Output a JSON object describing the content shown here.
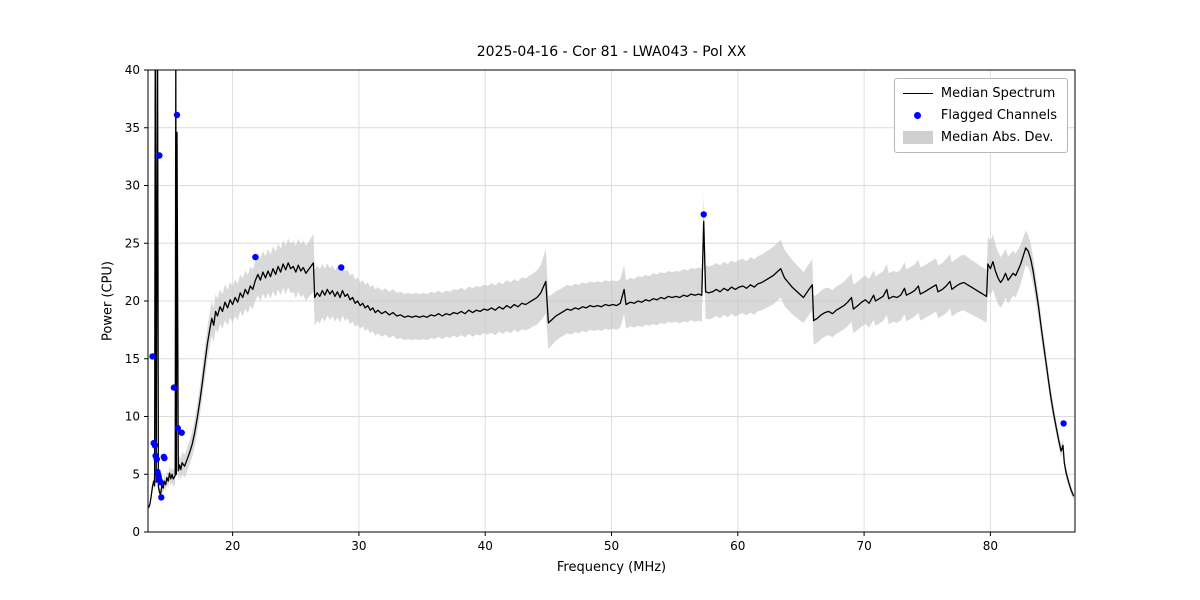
{
  "title": "2025-04-16 - Cor 81 - LWA043 - Pol XX",
  "chart_data": {
    "type": "line",
    "title": "2025-04-16 - Cor 81 - LWA043 - Pol XX",
    "xlabel": "Frequency (MHz)",
    "ylabel": "Power (CPU)",
    "xlim": [
      13.3,
      86.7
    ],
    "ylim": [
      0,
      40
    ],
    "xticks": [
      20,
      30,
      40,
      50,
      60,
      70,
      80
    ],
    "yticks": [
      0,
      5,
      10,
      15,
      20,
      25,
      30,
      35,
      40
    ],
    "grid": true,
    "colors": {
      "line": "#000000",
      "flagged": "#0000ff",
      "band": "#c4c4c4",
      "grid": "#dcdcdc",
      "spine": "#000000"
    },
    "legend": {
      "position": "upper right",
      "entries": [
        {
          "label": "Median Spectrum",
          "type": "line",
          "color": "#000000"
        },
        {
          "label": "Flagged Channels",
          "type": "point",
          "color": "#0000ff"
        },
        {
          "label": "Median Abs. Dev.",
          "type": "patch",
          "color": "#c8c8c8"
        }
      ]
    },
    "median_spectrum": [
      [
        13.35,
        2.1,
        0.2
      ],
      [
        13.45,
        2.4,
        0.25
      ],
      [
        13.55,
        3.1,
        0.3
      ],
      [
        13.65,
        3.9,
        0.4
      ],
      [
        13.75,
        4.4,
        0.5
      ],
      [
        13.82,
        4.0,
        0.5
      ],
      [
        13.88,
        45,
        0.5
      ],
      [
        13.95,
        4.3,
        0.5
      ],
      [
        14.05,
        45,
        0.5
      ],
      [
        14.12,
        3.9,
        0.5
      ],
      [
        14.2,
        3.5,
        0.45
      ],
      [
        14.3,
        3.2,
        0.4
      ],
      [
        14.4,
        4.1,
        0.5
      ],
      [
        14.5,
        3.8,
        0.5
      ],
      [
        14.6,
        4.4,
        0.55
      ],
      [
        14.7,
        4.1,
        0.55
      ],
      [
        14.8,
        4.7,
        0.6
      ],
      [
        14.9,
        4.4,
        0.6
      ],
      [
        15.0,
        5.1,
        0.65
      ],
      [
        15.1,
        4.6,
        0.65
      ],
      [
        15.2,
        5.0,
        0.7
      ],
      [
        15.3,
        4.6,
        0.7
      ],
      [
        15.45,
        4.9,
        0.7
      ],
      [
        15.5,
        41,
        0.7
      ],
      [
        15.55,
        5.0,
        0.75
      ],
      [
        15.6,
        34.6,
        0.8
      ],
      [
        15.7,
        5.3,
        0.8
      ],
      [
        15.8,
        5.8,
        0.85
      ],
      [
        15.9,
        5.4,
        0.9
      ],
      [
        16.0,
        6.0,
        0.95
      ],
      [
        16.2,
        5.7,
        1.0
      ],
      [
        16.4,
        6.3,
        1.0
      ],
      [
        16.6,
        6.9,
        1.05
      ],
      [
        16.8,
        7.6,
        1.1
      ],
      [
        17.0,
        8.6,
        1.15
      ],
      [
        17.2,
        9.9,
        1.2
      ],
      [
        17.4,
        11.3,
        1.25
      ],
      [
        17.6,
        12.9,
        1.3
      ],
      [
        17.8,
        14.6,
        1.35
      ],
      [
        18.0,
        16.3,
        1.4
      ],
      [
        18.2,
        17.6,
        1.45
      ],
      [
        18.35,
        18.5,
        1.5
      ],
      [
        18.5,
        17.9,
        1.5
      ],
      [
        18.65,
        19.1,
        1.5
      ],
      [
        18.8,
        18.7,
        1.5
      ],
      [
        19.0,
        19.5,
        1.5
      ],
      [
        19.2,
        19.1,
        1.5
      ],
      [
        19.4,
        19.9,
        1.55
      ],
      [
        19.6,
        19.4,
        1.55
      ],
      [
        19.8,
        20.1,
        1.55
      ],
      [
        20.0,
        19.7,
        1.55
      ],
      [
        20.2,
        20.3,
        1.6
      ],
      [
        20.4,
        19.9,
        1.6
      ],
      [
        20.6,
        20.7,
        1.6
      ],
      [
        20.8,
        20.3,
        1.65
      ],
      [
        21.0,
        21.0,
        1.65
      ],
      [
        21.2,
        20.6,
        1.65
      ],
      [
        21.4,
        21.3,
        1.7
      ],
      [
        21.6,
        21.0,
        1.7
      ],
      [
        21.8,
        21.8,
        1.75
      ],
      [
        22.0,
        22.3,
        1.8
      ],
      [
        22.2,
        21.8,
        1.8
      ],
      [
        22.4,
        22.5,
        1.85
      ],
      [
        22.6,
        22.0,
        1.85
      ],
      [
        22.8,
        22.6,
        1.9
      ],
      [
        23.0,
        22.1,
        1.9
      ],
      [
        23.2,
        22.8,
        1.95
      ],
      [
        23.4,
        22.3,
        1.95
      ],
      [
        23.6,
        23.0,
        2.0
      ],
      [
        23.8,
        22.5,
        2.0
      ],
      [
        24.0,
        23.2,
        2.05
      ],
      [
        24.2,
        22.7,
        2.1
      ],
      [
        24.4,
        23.3,
        2.1
      ],
      [
        24.6,
        22.8,
        2.15
      ],
      [
        24.8,
        23.0,
        2.2
      ],
      [
        25.0,
        22.5,
        2.25
      ],
      [
        25.2,
        23.1,
        2.3
      ],
      [
        25.4,
        22.6,
        2.3
      ],
      [
        25.6,
        22.9,
        2.35
      ],
      [
        25.8,
        22.4,
        2.4
      ],
      [
        26.0,
        22.7,
        2.4
      ],
      [
        26.2,
        23.0,
        2.45
      ],
      [
        26.4,
        23.3,
        2.5
      ],
      [
        26.5,
        20.3,
        2.45
      ],
      [
        26.7,
        20.7,
        2.4
      ],
      [
        26.9,
        20.4,
        2.35
      ],
      [
        27.1,
        20.9,
        2.3
      ],
      [
        27.3,
        20.5,
        2.3
      ],
      [
        27.5,
        21.0,
        2.25
      ],
      [
        27.7,
        20.6,
        2.25
      ],
      [
        27.9,
        20.9,
        2.2
      ],
      [
        28.1,
        20.4,
        2.2
      ],
      [
        28.3,
        20.8,
        2.2
      ],
      [
        28.5,
        20.3,
        2.2
      ],
      [
        28.7,
        20.9,
        2.15
      ],
      [
        28.9,
        20.4,
        2.15
      ],
      [
        29.1,
        20.6,
        2.1
      ],
      [
        29.3,
        20.1,
        2.1
      ],
      [
        29.5,
        20.3,
        2.1
      ],
      [
        29.7,
        19.8,
        2.05
      ],
      [
        29.9,
        20.0,
        2.05
      ],
      [
        30.1,
        19.6,
        2.0
      ],
      [
        30.3,
        19.8,
        2.0
      ],
      [
        30.5,
        19.4,
        2.0
      ],
      [
        30.7,
        19.6,
        2.0
      ],
      [
        30.9,
        19.2,
        2.0
      ],
      [
        31.1,
        19.4,
        2.0
      ],
      [
        31.3,
        19.0,
        2.0
      ],
      [
        31.5,
        19.2,
        2.0
      ],
      [
        31.8,
        18.9,
        2.0
      ],
      [
        32.1,
        19.1,
        2.0
      ],
      [
        32.4,
        18.8,
        2.0
      ],
      [
        32.7,
        19.0,
        2.0
      ],
      [
        33.0,
        18.7,
        2.0
      ],
      [
        33.3,
        18.8,
        2.0
      ],
      [
        33.6,
        18.6,
        2.0
      ],
      [
        33.9,
        18.7,
        2.0
      ],
      [
        34.2,
        18.6,
        2.0
      ],
      [
        34.5,
        18.7,
        2.0
      ],
      [
        34.8,
        18.6,
        2.0
      ],
      [
        35.1,
        18.7,
        2.0
      ],
      [
        35.4,
        18.6,
        2.0
      ],
      [
        35.7,
        18.8,
        2.0
      ],
      [
        36.0,
        18.7,
        2.0
      ],
      [
        36.3,
        18.9,
        2.0
      ],
      [
        36.6,
        18.7,
        2.0
      ],
      [
        36.9,
        18.9,
        2.0
      ],
      [
        37.2,
        18.8,
        2.0
      ],
      [
        37.5,
        19.0,
        2.0
      ],
      [
        37.8,
        18.9,
        2.05
      ],
      [
        38.1,
        19.1,
        2.05
      ],
      [
        38.4,
        18.9,
        2.05
      ],
      [
        38.7,
        19.2,
        2.05
      ],
      [
        39.0,
        19.0,
        2.1
      ],
      [
        39.3,
        19.2,
        2.1
      ],
      [
        39.6,
        19.1,
        2.1
      ],
      [
        39.9,
        19.3,
        2.1
      ],
      [
        40.2,
        19.2,
        2.1
      ],
      [
        40.5,
        19.4,
        2.15
      ],
      [
        40.8,
        19.2,
        2.15
      ],
      [
        41.1,
        19.5,
        2.15
      ],
      [
        41.4,
        19.3,
        2.15
      ],
      [
        41.7,
        19.6,
        2.2
      ],
      [
        42.0,
        19.4,
        2.2
      ],
      [
        42.3,
        19.7,
        2.2
      ],
      [
        42.6,
        19.5,
        2.2
      ],
      [
        42.9,
        19.8,
        2.25
      ],
      [
        43.2,
        19.7,
        2.25
      ],
      [
        43.5,
        19.9,
        2.3
      ],
      [
        43.8,
        20.1,
        2.3
      ],
      [
        44.1,
        20.3,
        2.35
      ],
      [
        44.4,
        20.7,
        2.4
      ],
      [
        44.8,
        21.7,
        2.8
      ],
      [
        45.0,
        18.1,
        2.3
      ],
      [
        45.3,
        18.4,
        2.2
      ],
      [
        45.6,
        18.7,
        2.15
      ],
      [
        45.9,
        18.9,
        2.1
      ],
      [
        46.2,
        19.1,
        2.1
      ],
      [
        46.5,
        19.3,
        2.1
      ],
      [
        46.8,
        19.2,
        2.1
      ],
      [
        47.1,
        19.4,
        2.1
      ],
      [
        47.4,
        19.3,
        2.1
      ],
      [
        47.7,
        19.5,
        2.1
      ],
      [
        48.0,
        19.4,
        2.1
      ],
      [
        48.3,
        19.6,
        2.1
      ],
      [
        48.6,
        19.5,
        2.1
      ],
      [
        48.9,
        19.6,
        2.1
      ],
      [
        49.2,
        19.5,
        2.1
      ],
      [
        49.5,
        19.7,
        2.1
      ],
      [
        49.8,
        19.6,
        2.1
      ],
      [
        50.1,
        19.7,
        2.1
      ],
      [
        50.4,
        19.6,
        2.1
      ],
      [
        50.7,
        19.8,
        2.1
      ],
      [
        51.0,
        21.0,
        2.1
      ],
      [
        51.15,
        19.7,
        2.1
      ],
      [
        51.5,
        19.9,
        2.1
      ],
      [
        51.8,
        19.8,
        2.1
      ],
      [
        52.1,
        20.0,
        2.15
      ],
      [
        52.4,
        19.9,
        2.15
      ],
      [
        52.7,
        20.1,
        2.15
      ],
      [
        53.0,
        20.0,
        2.15
      ],
      [
        53.3,
        20.2,
        2.2
      ],
      [
        53.6,
        20.1,
        2.2
      ],
      [
        53.9,
        20.3,
        2.2
      ],
      [
        54.2,
        20.2,
        2.2
      ],
      [
        54.5,
        20.4,
        2.2
      ],
      [
        54.8,
        20.3,
        2.2
      ],
      [
        55.1,
        20.4,
        2.2
      ],
      [
        55.4,
        20.3,
        2.25
      ],
      [
        55.7,
        20.5,
        2.25
      ],
      [
        56.0,
        20.4,
        2.25
      ],
      [
        56.3,
        20.6,
        2.25
      ],
      [
        56.6,
        20.5,
        2.3
      ],
      [
        56.9,
        20.6,
        2.3
      ],
      [
        57.15,
        20.5,
        2.3
      ],
      [
        57.3,
        26.9,
        2.3
      ],
      [
        57.45,
        20.8,
        2.3
      ],
      [
        57.7,
        20.7,
        2.3
      ],
      [
        58.0,
        20.8,
        2.3
      ],
      [
        58.3,
        21.0,
        2.3
      ],
      [
        58.6,
        20.8,
        2.3
      ],
      [
        58.9,
        21.1,
        2.3
      ],
      [
        59.2,
        20.9,
        2.3
      ],
      [
        59.5,
        21.2,
        2.3
      ],
      [
        59.8,
        21.0,
        2.35
      ],
      [
        60.1,
        21.2,
        2.35
      ],
      [
        60.4,
        21.3,
        2.35
      ],
      [
        60.7,
        21.1,
        2.35
      ],
      [
        61.0,
        21.4,
        2.4
      ],
      [
        61.3,
        21.2,
        2.4
      ],
      [
        61.6,
        21.5,
        2.4
      ],
      [
        61.9,
        21.6,
        2.4
      ],
      [
        62.2,
        21.8,
        2.45
      ],
      [
        62.5,
        22.0,
        2.45
      ],
      [
        62.8,
        22.2,
        2.5
      ],
      [
        63.1,
        22.5,
        2.5
      ],
      [
        63.4,
        22.8,
        2.5
      ],
      [
        63.7,
        22.0,
        2.45
      ],
      [
        64.0,
        21.6,
        2.4
      ],
      [
        64.3,
        21.2,
        2.35
      ],
      [
        64.6,
        20.9,
        2.3
      ],
      [
        64.9,
        20.6,
        2.25
      ],
      [
        65.2,
        20.3,
        2.2
      ],
      [
        65.5,
        20.8,
        2.2
      ],
      [
        65.9,
        21.4,
        2.2
      ],
      [
        66.0,
        18.3,
        2.1
      ],
      [
        66.3,
        18.5,
        2.1
      ],
      [
        66.6,
        18.8,
        2.1
      ],
      [
        66.9,
        19.0,
        2.1
      ],
      [
        67.2,
        19.1,
        2.05
      ],
      [
        67.5,
        18.9,
        2.05
      ],
      [
        67.8,
        19.2,
        2.05
      ],
      [
        68.1,
        19.4,
        2.05
      ],
      [
        68.4,
        19.6,
        2.05
      ],
      [
        68.7,
        19.9,
        2.1
      ],
      [
        69.0,
        20.3,
        2.1
      ],
      [
        69.15,
        19.3,
        2.1
      ],
      [
        69.5,
        19.6,
        2.1
      ],
      [
        69.8,
        19.9,
        2.1
      ],
      [
        70.1,
        20.1,
        2.1
      ],
      [
        70.4,
        19.8,
        2.1
      ],
      [
        70.75,
        20.5,
        2.15
      ],
      [
        70.9,
        20.0,
        2.15
      ],
      [
        71.2,
        20.2,
        2.15
      ],
      [
        71.5,
        20.4,
        2.15
      ],
      [
        71.8,
        21.0,
        2.2
      ],
      [
        71.95,
        20.2,
        2.2
      ],
      [
        72.3,
        20.4,
        2.2
      ],
      [
        72.6,
        20.3,
        2.2
      ],
      [
        72.9,
        20.5,
        2.2
      ],
      [
        73.2,
        21.1,
        2.25
      ],
      [
        73.35,
        20.5,
        2.25
      ],
      [
        73.7,
        20.7,
        2.25
      ],
      [
        74.0,
        20.9,
        2.25
      ],
      [
        74.3,
        21.3,
        2.3
      ],
      [
        74.45,
        20.6,
        2.3
      ],
      [
        74.8,
        20.8,
        2.3
      ],
      [
        75.1,
        21.0,
        2.3
      ],
      [
        75.4,
        21.2,
        2.3
      ],
      [
        75.7,
        21.4,
        2.3
      ],
      [
        75.85,
        20.8,
        2.3
      ],
      [
        76.2,
        21.0,
        2.3
      ],
      [
        76.5,
        21.3,
        2.35
      ],
      [
        76.8,
        21.7,
        2.35
      ],
      [
        76.95,
        21.0,
        2.35
      ],
      [
        77.3,
        21.3,
        2.35
      ],
      [
        77.6,
        21.5,
        2.4
      ],
      [
        77.9,
        21.6,
        2.4
      ],
      [
        78.2,
        21.4,
        2.4
      ],
      [
        78.5,
        21.2,
        2.35
      ],
      [
        78.8,
        21.0,
        2.35
      ],
      [
        79.1,
        20.8,
        2.3
      ],
      [
        79.4,
        20.6,
        2.3
      ],
      [
        79.7,
        20.4,
        2.3
      ],
      [
        79.8,
        23.2,
        2.4
      ],
      [
        80.0,
        22.8,
        2.4
      ],
      [
        80.2,
        23.4,
        2.35
      ],
      [
        80.4,
        22.6,
        2.3
      ],
      [
        80.6,
        22.0,
        2.25
      ],
      [
        80.8,
        21.6,
        2.2
      ],
      [
        81.0,
        21.9,
        2.15
      ],
      [
        81.2,
        22.4,
        2.1
      ],
      [
        81.4,
        21.8,
        2.05
      ],
      [
        81.6,
        22.1,
        2.0
      ],
      [
        81.8,
        22.4,
        1.95
      ],
      [
        82.0,
        22.2,
        1.9
      ],
      [
        82.2,
        22.7,
        1.8
      ],
      [
        82.4,
        23.2,
        1.7
      ],
      [
        82.6,
        23.9,
        1.6
      ],
      [
        82.8,
        24.6,
        1.5
      ],
      [
        83.0,
        24.3,
        1.4
      ],
      [
        83.2,
        23.6,
        1.3
      ],
      [
        83.4,
        22.5,
        1.2
      ],
      [
        83.6,
        21.1,
        1.1
      ],
      [
        83.8,
        19.6,
        1.0
      ],
      [
        84.0,
        17.9,
        0.95
      ],
      [
        84.2,
        16.3,
        0.9
      ],
      [
        84.4,
        14.7,
        0.85
      ],
      [
        84.6,
        13.1,
        0.8
      ],
      [
        84.8,
        11.6,
        0.75
      ],
      [
        85.0,
        10.3,
        0.7
      ],
      [
        85.2,
        9.1,
        0.65
      ],
      [
        85.4,
        8.0,
        0.6
      ],
      [
        85.6,
        7.0,
        0.55
      ],
      [
        85.75,
        7.5,
        0.5
      ],
      [
        85.85,
        6.0,
        0.5
      ],
      [
        86.0,
        5.1,
        0.45
      ],
      [
        86.2,
        4.3,
        0.4
      ],
      [
        86.4,
        3.6,
        0.35
      ],
      [
        86.6,
        3.1,
        0.3
      ]
    ],
    "flagged_channels": [
      [
        13.66,
        15.2
      ],
      [
        14.2,
        32.6
      ],
      [
        13.75,
        7.7
      ],
      [
        13.85,
        7.5
      ],
      [
        13.9,
        6.6
      ],
      [
        14.0,
        6.3
      ],
      [
        14.05,
        5.2
      ],
      [
        14.1,
        5.0
      ],
      [
        14.15,
        4.8
      ],
      [
        14.2,
        4.5
      ],
      [
        14.3,
        4.3
      ],
      [
        14.35,
        3.0
      ],
      [
        14.55,
        6.5
      ],
      [
        14.6,
        6.4
      ],
      [
        15.35,
        12.5
      ],
      [
        15.6,
        36.1
      ],
      [
        15.66,
        9.0
      ],
      [
        15.97,
        8.6
      ],
      [
        21.8,
        23.8
      ],
      [
        28.6,
        22.9
      ],
      [
        57.3,
        27.5
      ],
      [
        85.8,
        9.4
      ]
    ]
  }
}
